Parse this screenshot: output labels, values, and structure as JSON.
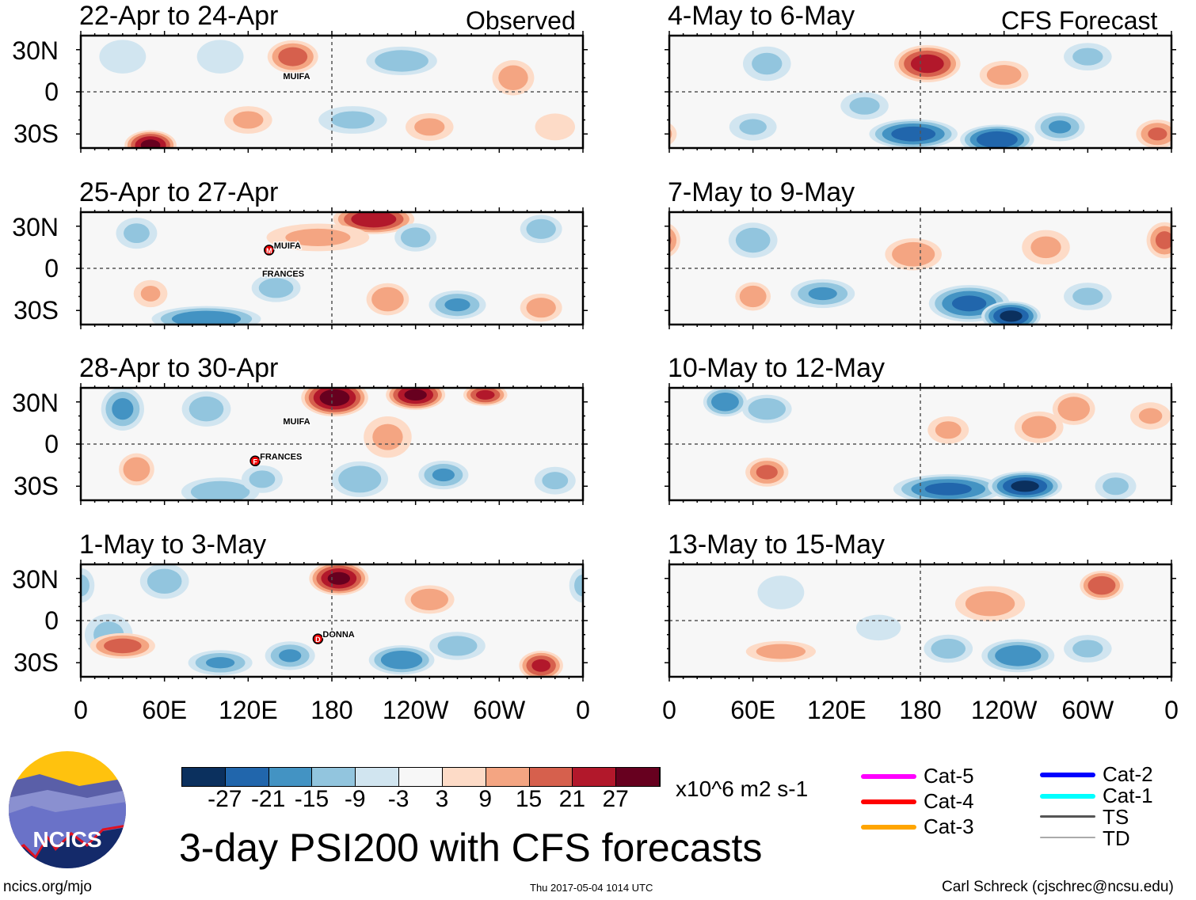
{
  "header": {
    "observed_label": "Observed",
    "forecast_label": "CFS Forecast"
  },
  "footer": {
    "title": "3-day PSI200 with CFS forecasts",
    "url": "ncics.org/mjo",
    "timestamp": "Thu 2017-05-04 1014 UTC",
    "author": "Carl Schreck (cjschrec@ncsu.edu)",
    "logo_text": "NCICS"
  },
  "colorbar": {
    "units": "x10^6 m2 s-1",
    "ticks": [
      "-27",
      "-21",
      "-15",
      "-9",
      "-3",
      "3",
      "9",
      "15",
      "21",
      "27"
    ],
    "colors": [
      "#0b305e",
      "#2166ac",
      "#4393c3",
      "#92c5de",
      "#d1e5f0",
      "#f7f7f7",
      "#fddbc7",
      "#f4a582",
      "#d6604d",
      "#b2182b",
      "#67001f"
    ]
  },
  "legend": [
    {
      "label": "Cat-5",
      "color": "#ff00ff"
    },
    {
      "label": "Cat-4",
      "color": "#ff0000"
    },
    {
      "label": "Cat-3",
      "color": "#ffa500"
    },
    {
      "label": "Cat-2",
      "color": "#0000ff"
    },
    {
      "label": "Cat-1",
      "color": "#00ffff"
    },
    {
      "label": "TS",
      "color": "#555555"
    },
    {
      "label": "TD",
      "color": "#aaaaaa"
    }
  ],
  "chart_data": {
    "type": "heatmap",
    "variable": "200-hPa streamfunction anomaly",
    "units": "x10^6 m2 s-1",
    "lat_labels": [
      "30N",
      "0",
      "30S"
    ],
    "lon_labels": [
      "0",
      "60E",
      "120E",
      "180",
      "120W",
      "60W",
      "0"
    ],
    "xlim": [
      0,
      360
    ],
    "ylim": [
      -40,
      40
    ],
    "panels": [
      {
        "title": "22-Apr to 24-Apr",
        "storms": [
          {
            "name": "MUIFA",
            "lon": 145,
            "lat": 9,
            "marker": ""
          }
        ],
        "blobs": [
          [
            152,
            25,
            18,
            14,
            9
          ],
          [
            50,
            -38,
            28,
            14,
            8
          ],
          [
            230,
            22,
            -14,
            20,
            8
          ],
          [
            310,
            10,
            12,
            12,
            10
          ],
          [
            30,
            25,
            -8,
            14,
            10
          ],
          [
            195,
            -20,
            -10,
            20,
            8
          ],
          [
            120,
            -20,
            10,
            14,
            8
          ],
          [
            340,
            -25,
            8,
            12,
            8
          ],
          [
            100,
            25,
            -8,
            14,
            10
          ],
          [
            250,
            -25,
            10,
            14,
            8
          ]
        ]
      },
      {
        "title": "4-May to 6-May",
        "storms": [],
        "blobs": [
          [
            185,
            20,
            24,
            18,
            10
          ],
          [
            240,
            12,
            12,
            14,
            8
          ],
          [
            175,
            -30,
            -24,
            24,
            8
          ],
          [
            235,
            -34,
            -26,
            20,
            8
          ],
          [
            280,
            -25,
            -15,
            14,
            8
          ],
          [
            140,
            -10,
            -10,
            14,
            8
          ],
          [
            60,
            -25,
            -9,
            14,
            8
          ],
          [
            350,
            -30,
            15,
            12,
            8
          ],
          [
            70,
            20,
            -10,
            14,
            10
          ],
          [
            300,
            25,
            -10,
            14,
            8
          ]
        ]
      },
      {
        "title": "25-Apr to 27-Apr",
        "storms": [
          {
            "name": "MUIFA",
            "lon": 135,
            "lat": 13,
            "marker": "M"
          },
          {
            "name": "FRANCES",
            "lon": 130,
            "lat": -6,
            "marker": ""
          }
        ],
        "blobs": [
          [
            210,
            35,
            26,
            22,
            8
          ],
          [
            170,
            22,
            10,
            30,
            8
          ],
          [
            240,
            22,
            -12,
            12,
            8
          ],
          [
            330,
            28,
            -12,
            12,
            8
          ],
          [
            90,
            -36,
            -20,
            30,
            7
          ],
          [
            140,
            -14,
            -12,
            14,
            8
          ],
          [
            220,
            -22,
            14,
            12,
            9
          ],
          [
            270,
            -26,
            -15,
            16,
            8
          ],
          [
            40,
            25,
            -10,
            12,
            9
          ],
          [
            330,
            -28,
            12,
            12,
            8
          ],
          [
            50,
            -18,
            9,
            10,
            8
          ]
        ]
      },
      {
        "title": "7-May to 9-May",
        "storms": [],
        "blobs": [
          [
            175,
            10,
            14,
            16,
            9
          ],
          [
            215,
            -25,
            -22,
            22,
            10
          ],
          [
            245,
            -34,
            -28,
            16,
            8
          ],
          [
            110,
            -18,
            -15,
            18,
            8
          ],
          [
            60,
            -20,
            14,
            10,
            8
          ],
          [
            355,
            20,
            16,
            10,
            10
          ],
          [
            270,
            15,
            10,
            14,
            10
          ],
          [
            60,
            20,
            -12,
            14,
            10
          ],
          [
            300,
            -20,
            -10,
            14,
            8
          ]
        ]
      },
      {
        "title": "28-Apr to 30-Apr",
        "storms": [
          {
            "name": "MUIFA",
            "lon": 145,
            "lat": 14,
            "marker": ""
          },
          {
            "name": "FRANCES",
            "lon": 125,
            "lat": -12,
            "marker": "F"
          }
        ],
        "blobs": [
          [
            182,
            33,
            30,
            18,
            10
          ],
          [
            240,
            35,
            28,
            16,
            8
          ],
          [
            290,
            35,
            22,
            12,
            6
          ],
          [
            30,
            25,
            -16,
            12,
            12
          ],
          [
            90,
            25,
            -12,
            14,
            10
          ],
          [
            40,
            -18,
            14,
            10,
            9
          ],
          [
            200,
            -25,
            -14,
            16,
            10
          ],
          [
            260,
            -22,
            -15,
            14,
            8
          ],
          [
            100,
            -34,
            -14,
            22,
            8
          ],
          [
            130,
            -25,
            -10,
            12,
            8
          ],
          [
            340,
            -26,
            -10,
            12,
            8
          ],
          [
            220,
            5,
            10,
            14,
            12
          ]
        ]
      },
      {
        "title": "10-May to 12-May",
        "storms": [],
        "blobs": [
          [
            40,
            30,
            -20,
            12,
            8
          ],
          [
            70,
            25,
            -14,
            14,
            8
          ],
          [
            70,
            -20,
            16,
            12,
            8
          ],
          [
            200,
            10,
            10,
            12,
            8
          ],
          [
            265,
            12,
            12,
            14,
            9
          ],
          [
            290,
            25,
            14,
            12,
            9
          ],
          [
            200,
            -32,
            -22,
            30,
            8
          ],
          [
            255,
            -30,
            -28,
            20,
            8
          ],
          [
            320,
            -30,
            -10,
            12,
            8
          ],
          [
            345,
            20,
            9,
            12,
            8
          ]
        ]
      },
      {
        "title": "1-May to 3-May",
        "storms": [
          {
            "name": "DONNA",
            "lon": 170,
            "lat": -13,
            "marker": "D"
          }
        ],
        "blobs": [
          [
            185,
            30,
            28,
            16,
            9
          ],
          [
            250,
            15,
            14,
            14,
            8
          ],
          [
            330,
            -32,
            22,
            12,
            8
          ],
          [
            20,
            -10,
            -10,
            14,
            12
          ],
          [
            30,
            -18,
            18,
            18,
            7
          ],
          [
            100,
            -30,
            -15,
            18,
            7
          ],
          [
            150,
            -25,
            -15,
            14,
            8
          ],
          [
            230,
            -28,
            -20,
            18,
            8
          ],
          [
            270,
            -18,
            -12,
            16,
            8
          ],
          [
            60,
            28,
            -12,
            14,
            10
          ],
          [
            360,
            25,
            -10,
            8,
            10
          ]
        ]
      },
      {
        "title": "13-May to 15-May",
        "storms": [],
        "blobs": [
          [
            310,
            25,
            20,
            12,
            8
          ],
          [
            230,
            12,
            12,
            20,
            10
          ],
          [
            80,
            -22,
            12,
            20,
            6
          ],
          [
            250,
            -25,
            -20,
            20,
            9
          ],
          [
            200,
            -20,
            -12,
            14,
            8
          ],
          [
            300,
            -20,
            -10,
            14,
            8
          ],
          [
            80,
            20,
            -8,
            14,
            10
          ],
          [
            150,
            -5,
            -6,
            14,
            8
          ]
        ]
      }
    ]
  }
}
